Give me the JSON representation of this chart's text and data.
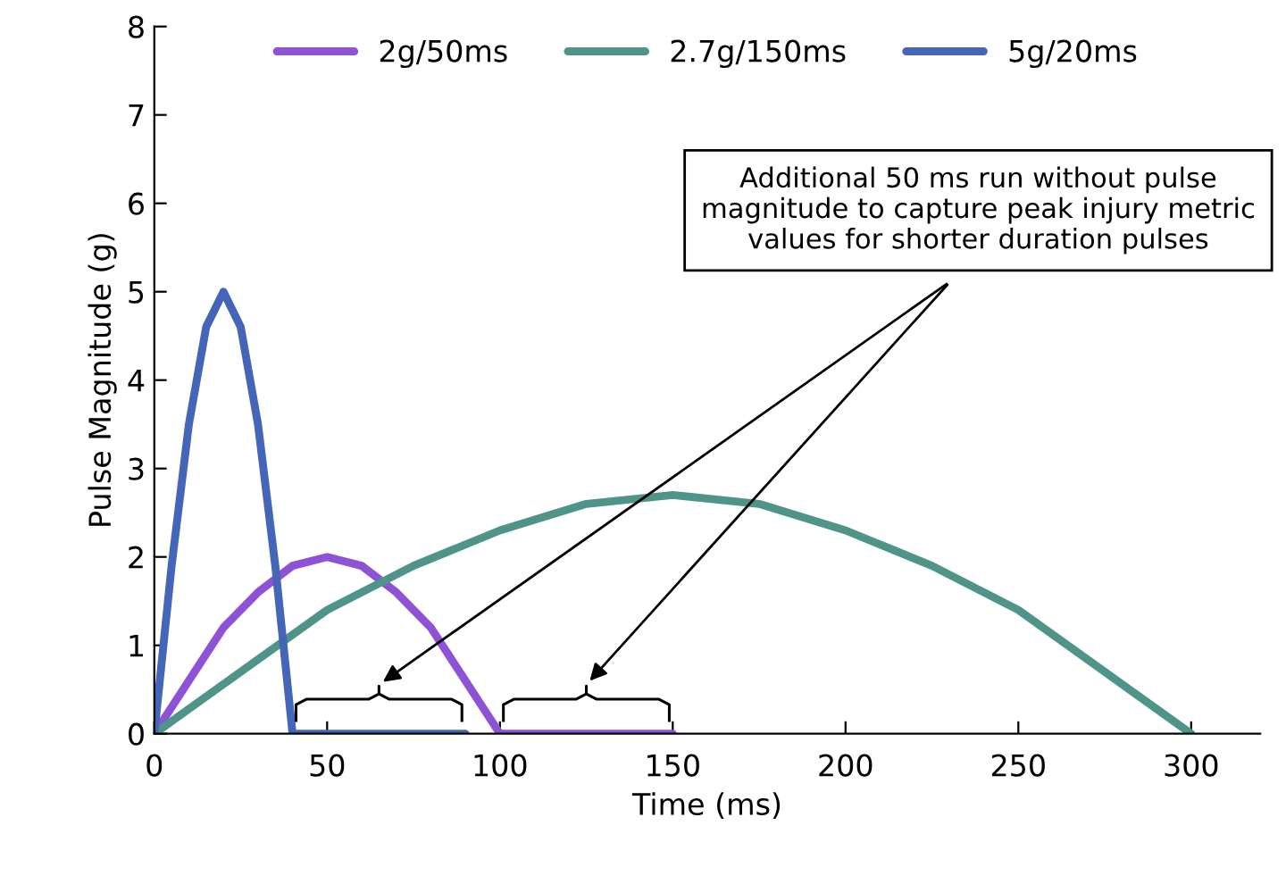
{
  "chart_data": {
    "type": "line",
    "xlabel": "Time (ms)",
    "ylabel": "Pulse Magnitude (g)",
    "xlim": [
      0,
      320
    ],
    "xticks": [
      0,
      50,
      100,
      150,
      200,
      250,
      300
    ],
    "ylim": [
      0,
      8
    ],
    "yticks": [
      0,
      1,
      2,
      3,
      4,
      5,
      6,
      7,
      8
    ],
    "grid": false,
    "legend": "top",
    "line_style": "solid",
    "marker": "none",
    "annotations": [
      "Additional 50 ms run without pulse magnitude to capture peak injury metric values for shorter duration pulses"
    ],
    "series": [
      {
        "name": "2g/50ms",
        "color": "#8e52d6",
        "x": [
          0,
          10,
          20,
          30,
          40,
          50,
          60,
          70,
          80,
          90,
          100,
          150
        ],
        "values": [
          0,
          0.6,
          1.2,
          1.6,
          1.9,
          2,
          1.9,
          1.6,
          1.2,
          0.6,
          0,
          0
        ]
      },
      {
        "name": "2.7g/150ms",
        "color": "#4e948a",
        "x": [
          0,
          25,
          50,
          75,
          100,
          125,
          150,
          175,
          200,
          225,
          250,
          275,
          300
        ],
        "values": [
          0,
          0.7,
          1.4,
          1.9,
          2.3,
          2.6,
          2.7,
          2.6,
          2.3,
          1.9,
          1.4,
          0.7,
          0
        ]
      },
      {
        "name": "5g/20ms",
        "color": "#4465b8",
        "x": [
          0,
          5,
          10,
          15,
          20,
          25,
          30,
          35,
          40,
          90
        ],
        "values": [
          0,
          1.9,
          3.5,
          4.6,
          5,
          4.6,
          3.5,
          1.9,
          0,
          0
        ]
      }
    ]
  }
}
